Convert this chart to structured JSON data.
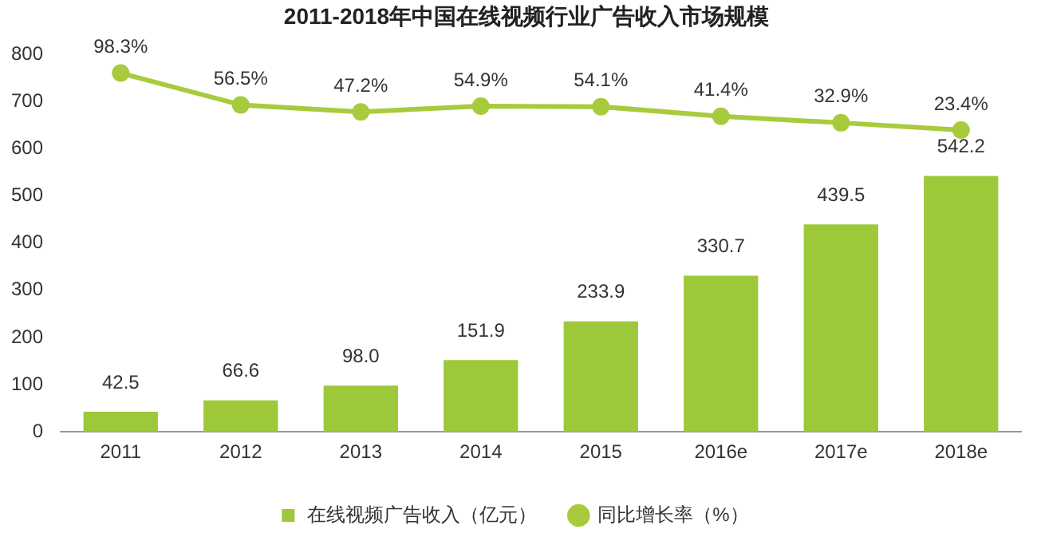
{
  "chart_data": {
    "type": "bar",
    "title": "2011-2018年中国在线视频行业广告收入市场规模",
    "categories": [
      "2011",
      "2012",
      "2013",
      "2014",
      "2015",
      "2016e",
      "2017e",
      "2018e"
    ],
    "series": [
      {
        "name": "在线视频广告收入（亿元）",
        "color": "#9dc83a",
        "values": [
          42.5,
          66.6,
          98.0,
          151.9,
          233.9,
          330.7,
          439.5,
          542.2
        ],
        "value_labels": [
          "42.5",
          "66.6",
          "98.0",
          "151.9",
          "233.9",
          "330.7",
          "439.5",
          "542.2"
        ]
      },
      {
        "name": "同比增长率（%）",
        "type": "line",
        "axis": "y2",
        "color": "#a8cb3e",
        "values": [
          98.3,
          56.5,
          47.2,
          54.9,
          54.1,
          41.4,
          32.9,
          23.4
        ],
        "value_labels": [
          "98.3%",
          "56.5%",
          "47.2%",
          "54.9%",
          "54.1%",
          "41.4%",
          "32.9%",
          "23.4%"
        ]
      }
    ],
    "ylim": [
      0,
      800
    ],
    "yticks": [
      0,
      100,
      200,
      300,
      400,
      500,
      600,
      700,
      800
    ],
    "grid": false,
    "legend": "bottom",
    "marker": "circle",
    "line_style": "solid"
  }
}
